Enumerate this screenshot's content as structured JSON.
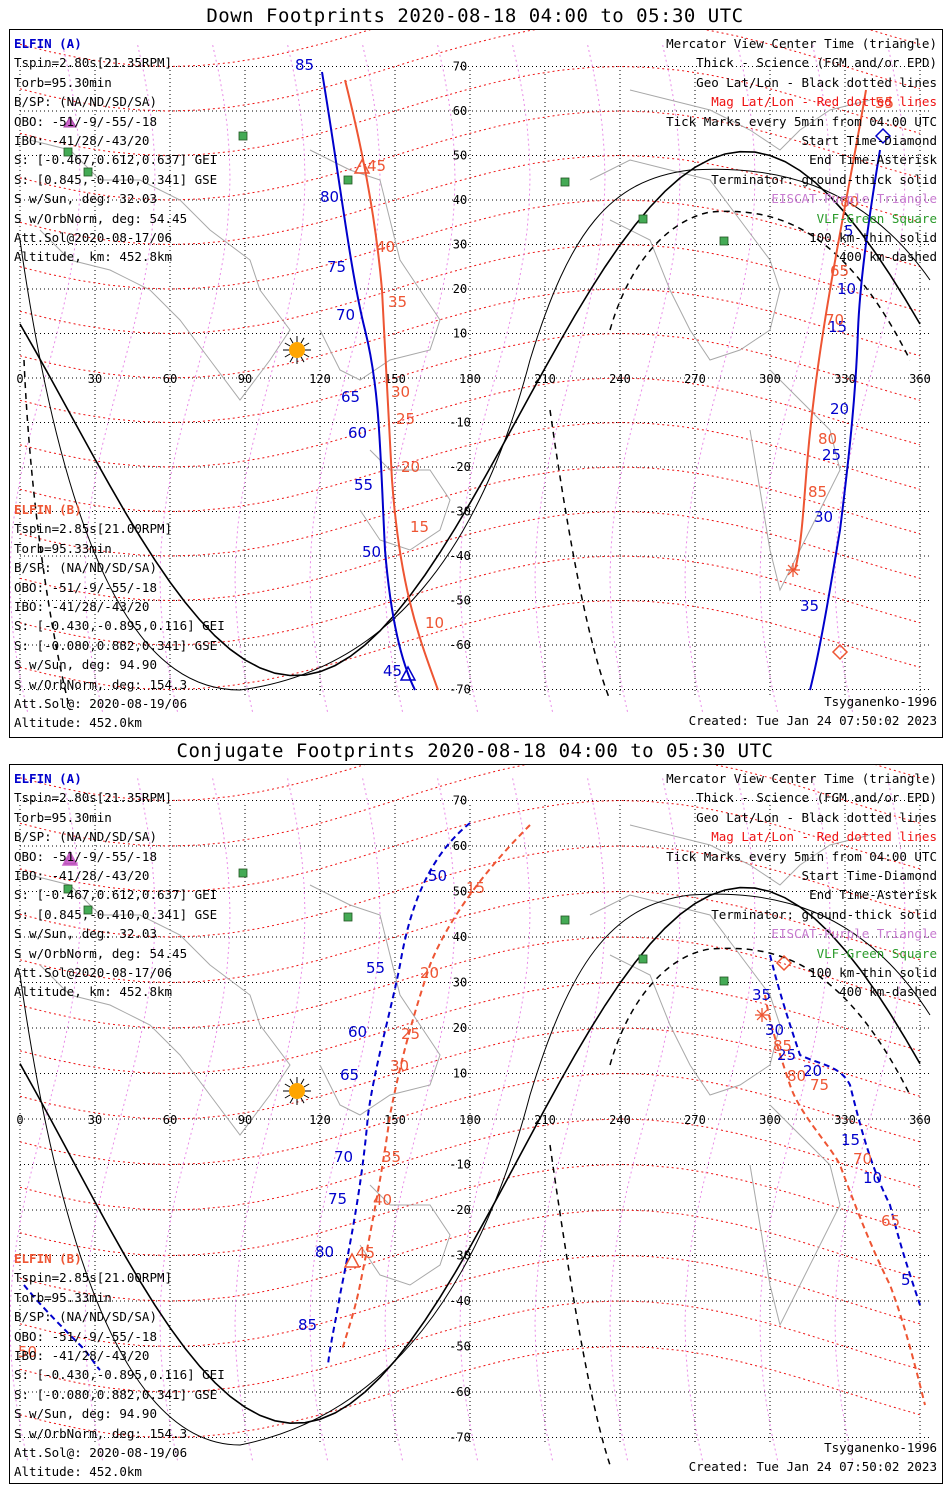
{
  "panels": [
    {
      "title": "Down Footprints 2020-08-18 04:00 to 05:30 UTC",
      "elfin_a": [
        "ELFIN (A)",
        "Tspin=2.80s[21.35RPM]",
        "Torb=95.30min",
        "B/SP: (NA/ND/SD/SA)",
        "OBO: -51/-9/-55/-18",
        "IBO: -41/28/-43/20",
        "S: [-0.467,0.612,0.637] GEI",
        "S: [0.845,-0.410,0.341] GSE",
        "S w/Sun, deg: 32.03",
        "S w/OrbNorm, deg: 54.45",
        "Att.Sol@2020-08-17/06",
        "Altitude, km: 452.8km"
      ],
      "elfin_b": [
        "ELFIN (B)",
        "Tspin=2.85s[21.00RPM]",
        "Torb=95.33min",
        "B/SP: (NA/ND/SD/SA)",
        "OBO: -51/-9/-55/-18",
        "IBO: -41/28/-43/20",
        "S: [-0.430,-0.895,0.116] GEI",
        "S: [-0.080,0.882,0.341] GSE",
        "S w/Sun, deg: 94.90",
        "S w/OrbNorm, deg: 154.3",
        "Att.Sol@: 2020-08-19/06",
        "Altitude: 452.0km"
      ],
      "legend": [
        "Mercator View Center Time (triangle)",
        "Thick - Science (FGM and/or EPD)",
        "Geo Lat/Lon - Black dotted lines",
        "Mag Lat/Lon - Red dotted lines",
        "Tick Marks every 5min from 04:00 UTC",
        "Start Time-Diamond",
        "End Time-Asterisk",
        "Terminator: ground-thick solid",
        "EISCAT-Purple Triangle",
        "VLF-Green Square",
        "100 km-thin solid",
        "400 km-dashed"
      ],
      "model": "Tsyganenko-1996",
      "created": "Created: Tue Jan 24 07:50:02 2023",
      "track_a_labels": [
        "85",
        "80",
        "75",
        "70",
        "65",
        "60",
        "55",
        "50",
        "45",
        "5",
        "10",
        "15",
        "20",
        "25",
        "30",
        "35"
      ],
      "track_b_labels": [
        "45",
        "40",
        "35",
        "30",
        "25",
        "20",
        "15",
        "10",
        "55",
        "60",
        "65",
        "70",
        "80",
        "85"
      ]
    },
    {
      "title": "Conjugate Footprints 2020-08-18 04:00 to 05:30 UTC",
      "elfin_a": [
        "ELFIN (A)",
        "Tspin=2.80s[21.35RPM]",
        "Torb=95.30min",
        "B/SP: (NA/ND/SD/SA)",
        "OBO: -51/-9/-55/-18",
        "IBO: -41/28/-43/20",
        "S: [-0.467,0.612,0.637] GEI",
        "S: [0.845,-0.410,0.341] GSE",
        "S w/Sun, deg: 32.03",
        "S w/OrbNorm, deg: 54.45",
        "Att.Sol@2020-08-17/06",
        "Altitude, km: 452.8km"
      ],
      "elfin_b": [
        "ELFIN (B)",
        "Tspin=2.85s[21.00RPM]",
        "Torb=95.33min",
        "B/SP: (NA/ND/SD/SA)",
        "OBO: -51/-9/-55/-18",
        "IBO: -41/28/-43/20",
        "S: [-0.430,-0.895,0.116] GEI",
        "S: [-0.080,0.882,0.341] GSE",
        "S w/Sun, deg: 94.90",
        "S w/OrbNorm, deg: 154.3",
        "Att.Sol@: 2020-08-19/06",
        "Altitude: 452.0km"
      ],
      "legend": [
        "Mercator View Center Time (triangle)",
        "Thick - Science (FGM and/or EPD)",
        "Geo Lat/Lon - Black dotted lines",
        "Mag Lat/Lon - Red dotted lines",
        "Tick Marks every 5min from 04:00 UTC",
        "Start Time-Diamond",
        "End Time-Asterisk",
        "Terminator: ground-thick solid",
        "EISCAT-Purple Triangle",
        "VLF-Green Square",
        "100 km-thin solid",
        "400 km-dashed"
      ],
      "model": "Tsyganenko-1996",
      "created": "Created: Tue Jan 24 07:50:02 2023",
      "track_a_labels": [
        "50",
        "55",
        "60",
        "65",
        "70",
        "75",
        "80",
        "85",
        "35",
        "30",
        "25",
        "20",
        "15",
        "10",
        "5"
      ],
      "track_b_labels": [
        "15",
        "20",
        "25",
        "30",
        "35",
        "40",
        "45",
        "50",
        "85",
        "80",
        "75",
        "70",
        "65"
      ]
    }
  ],
  "map": {
    "lon_ticks": [
      "0",
      "30",
      "60",
      "90",
      "120",
      "150",
      "180",
      "210",
      "240",
      "270",
      "300",
      "330",
      "360"
    ],
    "lat_ticks": [
      "70",
      "60",
      "50",
      "40",
      "30",
      "20",
      "10",
      "-10",
      "-20",
      "-30",
      "-40",
      "-50",
      "-60",
      "-70"
    ]
  },
  "colors": {
    "elfin_a": "#0000cc",
    "elfin_b": "#ee5533",
    "geo_grid": "#000000",
    "mag_grid": "#ee1111",
    "vlf": "#44aa55",
    "eiscat": "#cc66cc",
    "sun": "#ffa500"
  }
}
